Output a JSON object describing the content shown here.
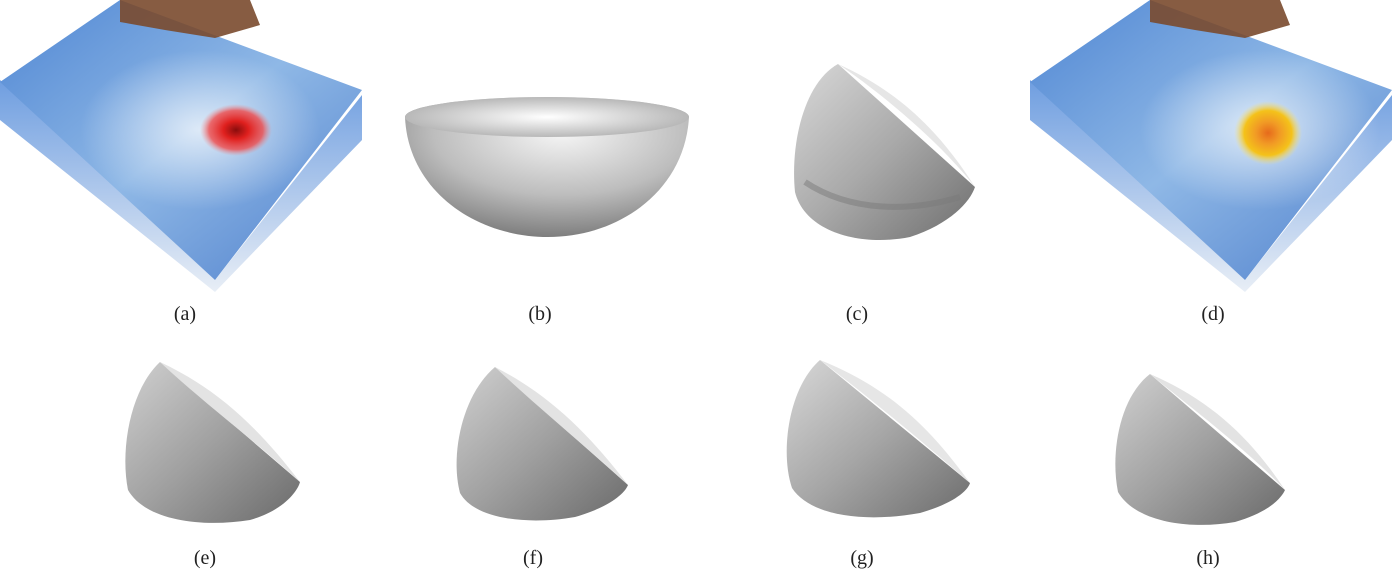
{
  "panels": [
    {
      "label": "(a)",
      "kind": "ocean-volume",
      "highlight": "red-core"
    },
    {
      "label": "(b)",
      "kind": "hemisphere-reference"
    },
    {
      "label": "(c)",
      "kind": "rough-hemisphere"
    },
    {
      "label": "(d)",
      "kind": "ocean-volume",
      "highlight": "yellow-core"
    },
    {
      "label": "(e)",
      "kind": "rough-hemisphere"
    },
    {
      "label": "(f)",
      "kind": "rough-hemisphere"
    },
    {
      "label": "(g)",
      "kind": "rough-hemisphere"
    },
    {
      "label": "(h)",
      "kind": "rough-hemisphere"
    }
  ],
  "colors": {
    "ocean_light": "#9fc3ea",
    "ocean_mid": "#5a8fd6",
    "ocean_dark": "#3e6fc2",
    "land": "#7a4a2e",
    "red_core": "#e0201e",
    "yellow_core": "#f4c21a",
    "orange_center": "#e66a1c",
    "surface_gray": "#a9a9a9"
  }
}
